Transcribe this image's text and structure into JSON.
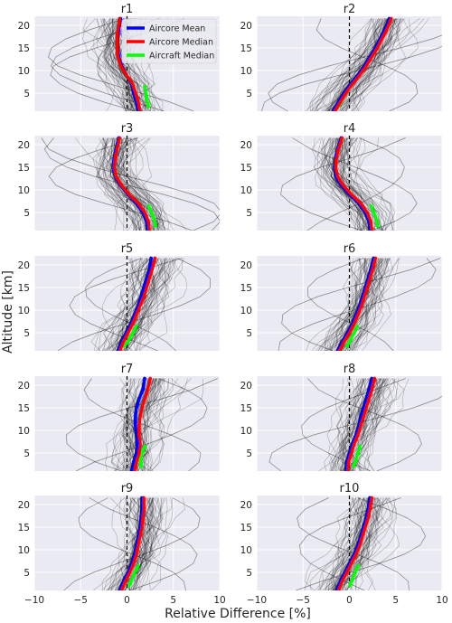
{
  "chart_data": {
    "type": "line",
    "ylabel": "Altitude [km]",
    "xlabel": "Relative Difference [%]",
    "xlim": [
      -10,
      10
    ],
    "ylim": [
      1,
      22
    ],
    "xticks": [
      -10,
      -5,
      0,
      5,
      10
    ],
    "yticks": [
      5,
      10,
      15,
      20
    ],
    "grid": true,
    "legend": {
      "placement": "top-right of panel r1",
      "entries": [
        "Aircore Mean",
        "Aircore Median",
        "Aircraft Median"
      ]
    },
    "colors": {
      "background": "#eaeaf2",
      "grid": "#ffffff",
      "aircore_mean": "#0000ff",
      "aircore_median": "#ff0000",
      "aircraft_median": "#00ff00",
      "individual_profiles": "#000000",
      "zero_line": "#000000"
    },
    "altitudes": [
      1,
      3,
      5,
      7,
      9,
      11,
      13,
      15,
      17,
      19,
      21.5
    ],
    "aircraft_altitudes": [
      2,
      3.5,
      5,
      6.5
    ],
    "panels": [
      {
        "title": "r1",
        "series": [
          {
            "name": "Aircore Mean",
            "x": [
              1.2,
              1.0,
              0.7,
              0.5,
              -0.1,
              -0.6,
              -0.9,
              -1.0,
              -1.0,
              -0.9,
              -0.7
            ]
          },
          {
            "name": "Aircore Median",
            "x": [
              1.4,
              1.2,
              0.9,
              0.6,
              -0.1,
              -0.7,
              -1.0,
              -1.1,
              -1.1,
              -1.0,
              -0.8
            ]
          },
          {
            "name": "Aircraft Median",
            "x": [
              2.3,
              2.1,
              2.0,
              1.9
            ]
          }
        ]
      },
      {
        "title": "r2",
        "series": [
          {
            "name": "Aircore Mean",
            "x": [
              -1.8,
              -1.2,
              -0.6,
              0.1,
              0.9,
              1.6,
              2.2,
              2.8,
              3.3,
              3.8,
              4.3
            ]
          },
          {
            "name": "Aircore Median",
            "x": [
              -1.6,
              -1.0,
              -0.4,
              0.3,
              1.1,
              1.8,
              2.4,
              3.0,
              3.5,
              4.0,
              4.5
            ]
          },
          {
            "name": "Aircraft Median",
            "x": [
              -1.2,
              -0.8,
              -0.4,
              0.0
            ]
          }
        ]
      },
      {
        "title": "r3",
        "series": [
          {
            "name": "Aircore Mean",
            "x": [
              2.2,
              2.1,
              1.7,
              1.0,
              0.1,
              -0.7,
              -1.3,
              -1.5,
              -1.4,
              -1.2,
              -0.9
            ]
          },
          {
            "name": "Aircore Median",
            "x": [
              2.4,
              2.3,
              1.9,
              1.2,
              0.2,
              -0.6,
              -1.2,
              -1.4,
              -1.3,
              -1.1,
              -0.8
            ]
          },
          {
            "name": "Aircraft Median",
            "x": [
              3.0,
              2.9,
              2.6,
              2.3
            ]
          }
        ]
      },
      {
        "title": "r4",
        "series": [
          {
            "name": "Aircore Mean",
            "x": [
              2.2,
              2.1,
              1.7,
              1.0,
              0.0,
              -0.9,
              -1.5,
              -1.6,
              -1.5,
              -1.3,
              -0.9
            ]
          },
          {
            "name": "Aircore Median",
            "x": [
              2.4,
              2.3,
              1.9,
              1.2,
              0.2,
              -0.7,
              -1.3,
              -1.5,
              -1.4,
              -1.2,
              -0.8
            ]
          },
          {
            "name": "Aircraft Median",
            "x": [
              3.0,
              2.9,
              2.6,
              2.3
            ]
          }
        ]
      },
      {
        "title": "r5",
        "series": [
          {
            "name": "Aircore Mean",
            "x": [
              -1.0,
              -0.6,
              -0.1,
              0.4,
              0.8,
              1.2,
              1.5,
              1.8,
              2.1,
              2.4,
              2.6
            ]
          },
          {
            "name": "Aircore Median",
            "x": [
              -0.8,
              -0.4,
              0.1,
              0.6,
              1.0,
              1.4,
              1.8,
              2.1,
              2.4,
              2.7,
              3.0
            ]
          },
          {
            "name": "Aircraft Median",
            "x": [
              -0.3,
              0.2,
              0.6,
              1.0
            ]
          }
        ]
      },
      {
        "title": "r6",
        "series": [
          {
            "name": "Aircore Mean",
            "x": [
              -1.3,
              -0.8,
              -0.2,
              0.3,
              0.7,
              1.1,
              1.4,
              1.7,
              2.0,
              2.3,
              2.6
            ]
          },
          {
            "name": "Aircore Median",
            "x": [
              -1.1,
              -0.6,
              0.0,
              0.5,
              0.9,
              1.3,
              1.6,
              1.9,
              2.2,
              2.5,
              2.8
            ]
          },
          {
            "name": "Aircraft Median",
            "x": [
              -0.3,
              0.1,
              0.5,
              0.8
            ]
          }
        ]
      },
      {
        "title": "r7",
        "series": [
          {
            "name": "Aircore Mean",
            "x": [
              0.5,
              0.7,
              1.0,
              1.1,
              1.0,
              0.9,
              0.9,
              1.0,
              1.3,
              1.7,
              1.9
            ]
          },
          {
            "name": "Aircore Median",
            "x": [
              0.8,
              1.0,
              1.3,
              1.4,
              1.3,
              1.3,
              1.4,
              1.6,
              1.9,
              2.2,
              2.5
            ]
          },
          {
            "name": "Aircraft Median",
            "x": [
              1.5,
              1.4,
              1.6,
              1.9
            ]
          }
        ]
      },
      {
        "title": "r8",
        "series": [
          {
            "name": "Aircore Mean",
            "x": [
              -0.4,
              -0.3,
              0.0,
              0.3,
              0.7,
              1.0,
              1.2,
              1.5,
              1.8,
              2.1,
              2.4
            ]
          },
          {
            "name": "Aircore Median",
            "x": [
              -0.2,
              -0.1,
              0.2,
              0.5,
              0.9,
              1.2,
              1.5,
              1.8,
              2.1,
              2.4,
              2.7
            ]
          },
          {
            "name": "Aircraft Median",
            "x": [
              0.4,
              0.7,
              0.9,
              1.1
            ]
          }
        ]
      },
      {
        "title": "r9",
        "series": [
          {
            "name": "Aircore Mean",
            "x": [
              -0.8,
              -0.4,
              0.1,
              0.5,
              0.8,
              1.0,
              1.2,
              1.4,
              1.5,
              1.6,
              1.6
            ]
          },
          {
            "name": "Aircore Median",
            "x": [
              -0.6,
              -0.2,
              0.3,
              0.7,
              1.0,
              1.2,
              1.4,
              1.6,
              1.7,
              1.8,
              1.8
            ]
          },
          {
            "name": "Aircraft Median",
            "x": [
              0.2,
              0.5,
              0.8,
              1.2
            ]
          }
        ]
      },
      {
        "title": "r10",
        "series": [
          {
            "name": "Aircore Mean",
            "x": [
              -1.4,
              -1.0,
              -0.5,
              0.0,
              0.5,
              0.9,
              1.2,
              1.5,
              1.8,
              2.0,
              2.2
            ]
          },
          {
            "name": "Aircore Median",
            "x": [
              -1.2,
              -0.8,
              -0.3,
              0.2,
              0.7,
              1.1,
              1.4,
              1.7,
              2.0,
              2.2,
              2.4
            ]
          },
          {
            "name": "Aircraft Median",
            "x": [
              0.0,
              0.3,
              0.6,
              0.9
            ]
          }
        ]
      }
    ]
  }
}
